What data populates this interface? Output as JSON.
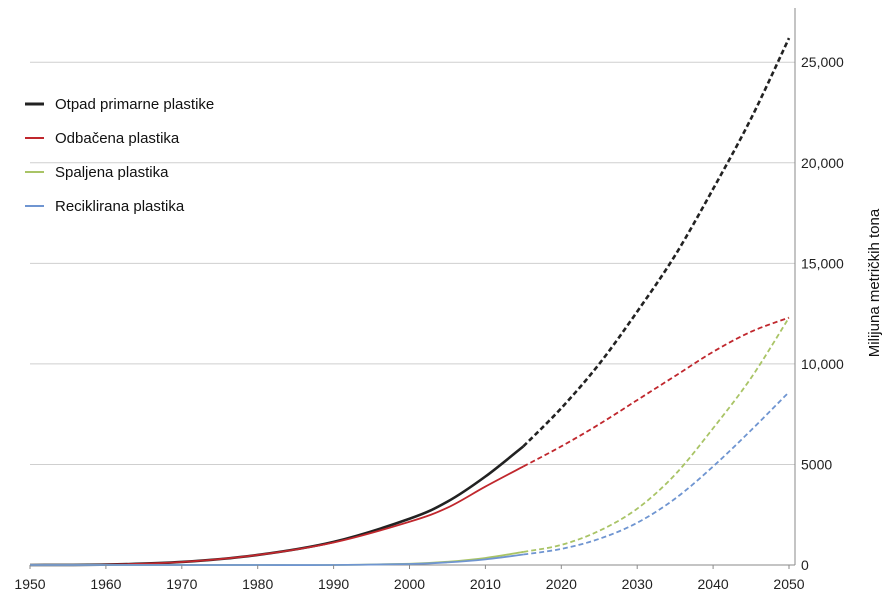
{
  "chart_data": {
    "type": "line",
    "title": "",
    "xlabel": "",
    "ylabel": "Milijuna metričkih tona",
    "xlim": [
      1950,
      2050
    ],
    "ylim": [
      0,
      27000
    ],
    "x_ticks": [
      "1950",
      "1960",
      "1970",
      "1980",
      "1990",
      "2000",
      "2010",
      "2020",
      "2030",
      "2040",
      "2050"
    ],
    "y_ticks": [
      {
        "value": 0,
        "label": "0"
      },
      {
        "value": 5000,
        "label": "5000"
      },
      {
        "value": 10000,
        "label": "10,000"
      },
      {
        "value": 15000,
        "label": "15,000"
      },
      {
        "value": 20000,
        "label": "20,000"
      },
      {
        "value": 25000,
        "label": "25,000"
      }
    ],
    "y_axis_side": "right",
    "grid": "horizontal",
    "legend_position": "top-left",
    "projection_start_year": 2015,
    "series": [
      {
        "name": "Otpad primarne plastike",
        "color": "#222222",
        "x": [
          1950,
          1960,
          1970,
          1980,
          1990,
          2000,
          2005,
          2010,
          2015,
          2020,
          2025,
          2030,
          2035,
          2040,
          2045,
          2050
        ],
        "values": [
          0,
          20,
          150,
          500,
          1150,
          2300,
          3150,
          4400,
          5900,
          7800,
          10000,
          12600,
          15400,
          18700,
          22200,
          26200
        ]
      },
      {
        "name": "Odbačena plastika",
        "color": "#c0272d",
        "x": [
          1950,
          1960,
          1970,
          1980,
          1990,
          2000,
          2005,
          2010,
          2015,
          2020,
          2025,
          2030,
          2035,
          2040,
          2045,
          2050
        ],
        "values": [
          0,
          20,
          150,
          500,
          1120,
          2150,
          2850,
          3900,
          4900,
          5900,
          7000,
          8200,
          9400,
          10600,
          11600,
          12300
        ]
      },
      {
        "name": "Spaljena plastika",
        "color": "#a9c466",
        "x": [
          1950,
          1960,
          1970,
          1980,
          1990,
          2000,
          2005,
          2010,
          2015,
          2020,
          2025,
          2030,
          2035,
          2040,
          2045,
          2050
        ],
        "values": [
          0,
          0,
          0,
          0,
          0,
          60,
          160,
          350,
          650,
          1000,
          1700,
          2800,
          4500,
          6800,
          9300,
          12300
        ]
      },
      {
        "name": "Reciklirana plastika",
        "color": "#6f95d1",
        "x": [
          1950,
          1960,
          1970,
          1980,
          1990,
          2000,
          2005,
          2010,
          2015,
          2020,
          2025,
          2030,
          2035,
          2040,
          2045,
          2050
        ],
        "values": [
          0,
          0,
          0,
          0,
          0,
          50,
          130,
          280,
          520,
          800,
          1300,
          2100,
          3300,
          4900,
          6700,
          8600
        ]
      }
    ]
  }
}
